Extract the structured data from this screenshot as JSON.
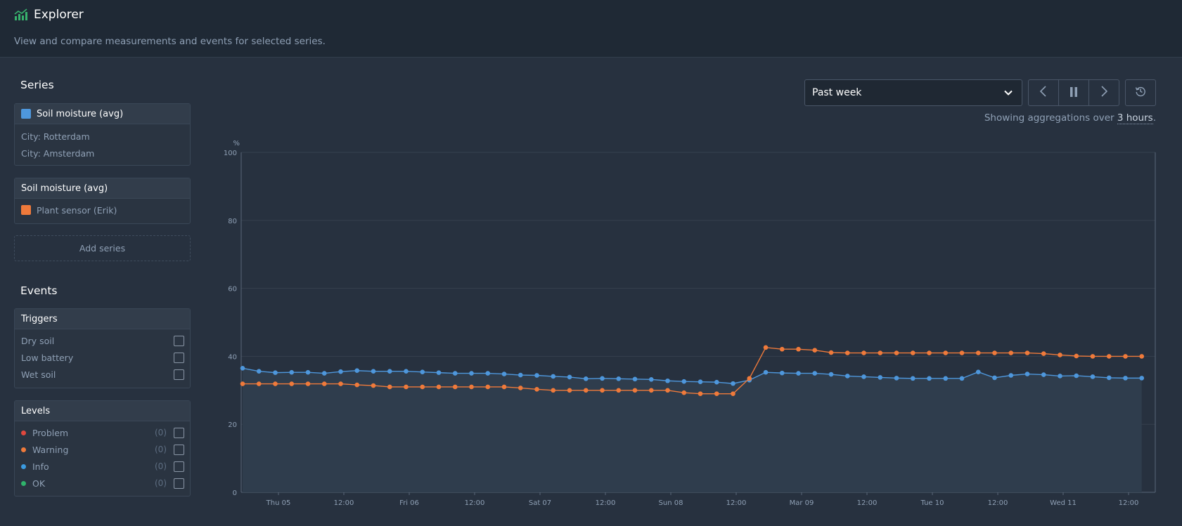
{
  "header": {
    "title": "Explorer",
    "subtitle": "View and compare measurements and events for selected series."
  },
  "series_section": {
    "title": "Series",
    "groups": [
      {
        "title": "Soil moisture (avg)",
        "color": "#4e97dc",
        "items": [
          "City: Rotterdam",
          "City: Amsterdam"
        ]
      },
      {
        "title": "Soil moisture (avg)",
        "items": [
          {
            "label": "Plant sensor (Erik)",
            "color": "#ef7a3b"
          }
        ]
      }
    ],
    "add_label": "Add series"
  },
  "events_section": {
    "title": "Events",
    "triggers": {
      "title": "Triggers",
      "items": [
        "Dry soil",
        "Low battery",
        "Wet soil"
      ]
    },
    "levels": {
      "title": "Levels",
      "items": [
        {
          "label": "Problem",
          "count": "(0)",
          "color": "#e0483e"
        },
        {
          "label": "Warning",
          "count": "(0)",
          "color": "#ef7a3b"
        },
        {
          "label": "Info",
          "count": "(0)",
          "color": "#3b9be0"
        },
        {
          "label": "OK",
          "count": "(0)",
          "color": "#2fb36b"
        }
      ]
    }
  },
  "controls": {
    "range_value": "Past week",
    "agg_prefix": "Showing aggregations over ",
    "agg_value": "3 hours",
    "agg_suffix": "."
  },
  "chart_data": {
    "type": "line",
    "ylabel": "%",
    "ylim": [
      0,
      100
    ],
    "yticks": [
      "0",
      "20",
      "40",
      "60",
      "80",
      "100"
    ],
    "grid": true,
    "x_tick_labels": [
      "Thu 05",
      "12:00",
      "Fri 06",
      "12:00",
      "Sat 07",
      "12:00",
      "Sun 08",
      "12:00",
      "Mar 09",
      "12:00",
      "Tue 10",
      "12:00",
      "Wed 11",
      "12:00"
    ],
    "x_start": "Thu 05 00:00",
    "x_step_hours": 3,
    "series": [
      {
        "color": "#4e97dc",
        "area": true,
        "values": [
          36.5,
          35.6,
          35.2,
          35.3,
          35.3,
          35.0,
          35.5,
          35.8,
          35.6,
          35.6,
          35.6,
          35.4,
          35.2,
          35.0,
          35.0,
          35.0,
          34.8,
          34.5,
          34.4,
          34.1,
          33.9,
          33.4,
          33.5,
          33.4,
          33.3,
          33.2,
          32.8,
          32.6,
          32.5,
          32.4,
          32.0,
          33.0,
          35.3,
          35.1,
          35.0,
          35.0,
          34.7,
          34.2,
          34.0,
          33.8,
          33.6,
          33.5,
          33.5,
          33.5,
          33.5,
          35.4,
          33.7,
          34.4,
          34.8,
          34.6,
          34.2,
          34.3,
          34.0,
          33.7,
          33.6,
          33.6
        ]
      },
      {
        "color": "#ef7a3b",
        "area": false,
        "values": [
          31.9,
          31.9,
          31.9,
          31.9,
          31.9,
          31.9,
          31.9,
          31.6,
          31.4,
          31.0,
          31.0,
          31.0,
          31.0,
          31.0,
          31.0,
          31.0,
          31.0,
          30.7,
          30.3,
          30.0,
          30.0,
          30.0,
          30.0,
          30.0,
          30.0,
          30.0,
          30.0,
          29.3,
          29.0,
          29.0,
          29.0,
          33.5,
          42.6,
          42.1,
          42.1,
          41.8,
          41.1,
          41.0,
          41.0,
          41.0,
          41.0,
          41.0,
          41.0,
          41.0,
          41.0,
          41.0,
          41.0,
          41.0,
          41.0,
          40.8,
          40.4,
          40.1,
          40.0,
          40.0,
          40.0,
          40.0
        ]
      }
    ]
  }
}
